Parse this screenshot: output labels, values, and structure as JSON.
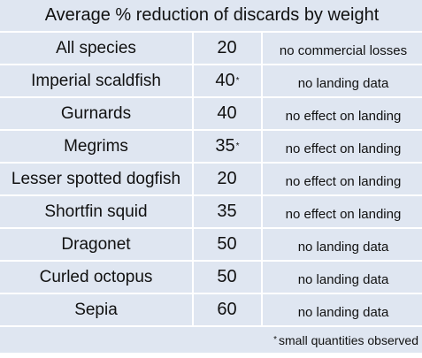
{
  "table": {
    "title": "Average % reduction of discards by weight",
    "rows": [
      {
        "species": "All species",
        "value": "20",
        "mark": "",
        "effect": "no commercial losses"
      },
      {
        "species": "Imperial scaldfish",
        "value": "40",
        "mark": "*",
        "effect": "no landing data"
      },
      {
        "species": "Gurnards",
        "value": "40",
        "mark": "",
        "effect": "no effect on landing"
      },
      {
        "species": "Megrims",
        "value": "35",
        "mark": "*",
        "effect": "no effect on landing"
      },
      {
        "species": "Lesser spotted dogfish",
        "value": "20",
        "mark": "",
        "effect": "no effect on landing"
      },
      {
        "species": "Shortfin squid",
        "value": "35",
        "mark": "",
        "effect": "no effect on landing"
      },
      {
        "species": "Dragonet",
        "value": "50",
        "mark": "",
        "effect": "no landing data"
      },
      {
        "species": "Curled octopus",
        "value": "50",
        "mark": "",
        "effect": "no landing data"
      },
      {
        "species": "Sepia",
        "value": "60",
        "mark": "",
        "effect": "no landing data"
      }
    ],
    "footnote": {
      "mark": "*",
      "text": "small quantities observed"
    }
  },
  "colors": {
    "cell_background": "#dfe6f1",
    "grid_lines": "#ffffff"
  }
}
